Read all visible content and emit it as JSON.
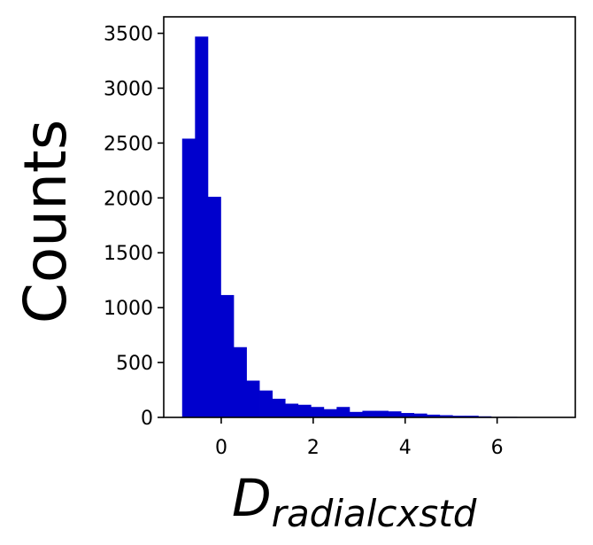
{
  "chart_data": {
    "type": "bar",
    "subtype": "histogram",
    "ylabel": "Counts",
    "xlabel_main": "D",
    "xlabel_sub": "radialcxstd",
    "bin_width": 0.28,
    "bin_start": -0.85,
    "values": [
      2540,
      3470,
      2010,
      1115,
      640,
      335,
      245,
      170,
      125,
      115,
      95,
      75,
      95,
      50,
      60,
      60,
      55,
      40,
      35,
      25,
      20,
      15,
      15,
      10,
      5,
      5,
      3,
      2,
      1,
      1
    ],
    "xlim": [
      -1.25,
      7.7
    ],
    "ylim": [
      0,
      3650
    ],
    "xticks": [
      0,
      2,
      4,
      6
    ],
    "xtick_labels": [
      "0",
      "2",
      "4",
      "6"
    ],
    "yticks": [
      0,
      500,
      1000,
      1500,
      2000,
      2500,
      3000,
      3500
    ],
    "ytick_labels": [
      "0",
      "500",
      "1000",
      "1500",
      "2000",
      "2500",
      "3000",
      "3500"
    ],
    "bar_color": "#0000cd",
    "grid": false,
    "legend": "none"
  }
}
